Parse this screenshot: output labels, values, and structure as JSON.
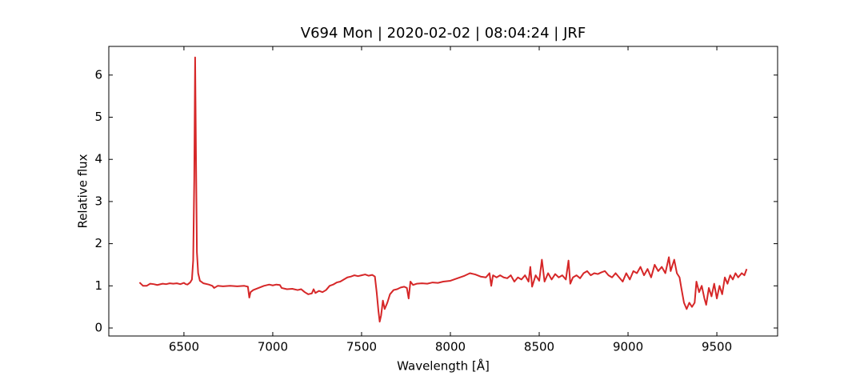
{
  "chart_data": {
    "type": "line",
    "title": "V694 Mon | 2020-02-02 | 08:04:24 | JRF",
    "x_label": "Wavelength [Å]",
    "y_label": "Relative flux",
    "x": [
      6250,
      6270,
      6290,
      6310,
      6330,
      6350,
      6380,
      6400,
      6420,
      6440,
      6460,
      6480,
      6500,
      6510,
      6520,
      6535,
      6545,
      6552,
      6558,
      6563,
      6568,
      6573,
      6580,
      6590,
      6610,
      6640,
      6660,
      6670,
      6690,
      6720,
      6760,
      6800,
      6840,
      6860,
      6868,
      6875,
      6890,
      6920,
      6950,
      6980,
      7000,
      7020,
      7040,
      7050,
      7080,
      7110,
      7140,
      7160,
      7180,
      7200,
      7220,
      7230,
      7240,
      7260,
      7280,
      7300,
      7320,
      7340,
      7360,
      7380,
      7400,
      7420,
      7440,
      7460,
      7480,
      7500,
      7520,
      7540,
      7560,
      7575,
      7585,
      7595,
      7602,
      7610,
      7620,
      7630,
      7645,
      7660,
      7680,
      7700,
      7720,
      7740,
      7755,
      7765,
      7775,
      7790,
      7810,
      7840,
      7870,
      7900,
      7930,
      7960,
      8000,
      8040,
      8080,
      8110,
      8140,
      8170,
      8200,
      8220,
      8230,
      8240,
      8260,
      8280,
      8300,
      8320,
      8340,
      8360,
      8380,
      8400,
      8420,
      8440,
      8450,
      8460,
      8480,
      8500,
      8515,
      8530,
      8550,
      8570,
      8590,
      8610,
      8630,
      8650,
      8665,
      8675,
      8690,
      8710,
      8730,
      8750,
      8770,
      8790,
      8810,
      8830,
      8850,
      8870,
      8890,
      8910,
      8930,
      8950,
      8970,
      8990,
      9010,
      9030,
      9050,
      9070,
      9090,
      9110,
      9130,
      9150,
      9170,
      9190,
      9210,
      9230,
      9240,
      9260,
      9275,
      9290,
      9300,
      9315,
      9330,
      9345,
      9360,
      9375,
      9385,
      9400,
      9415,
      9430,
      9440,
      9455,
      9470,
      9485,
      9500,
      9515,
      9530,
      9545,
      9560,
      9575,
      9590,
      9605,
      9620,
      9640,
      9655,
      9668
    ],
    "series": [
      {
        "color": "#d62728",
        "values": [
          1.08,
          1.0,
          1.0,
          1.05,
          1.04,
          1.02,
          1.05,
          1.04,
          1.06,
          1.05,
          1.06,
          1.04,
          1.07,
          1.04,
          1.03,
          1.08,
          1.15,
          1.6,
          3.5,
          6.42,
          4.0,
          1.8,
          1.3,
          1.12,
          1.06,
          1.03,
          1.0,
          0.95,
          1.0,
          0.99,
          1.0,
          0.99,
          1.0,
          0.98,
          0.72,
          0.85,
          0.9,
          0.95,
          1.0,
          1.03,
          1.01,
          1.03,
          1.02,
          0.95,
          0.92,
          0.93,
          0.9,
          0.92,
          0.85,
          0.8,
          0.82,
          0.92,
          0.83,
          0.88,
          0.85,
          0.9,
          1.0,
          1.03,
          1.08,
          1.1,
          1.15,
          1.2,
          1.22,
          1.25,
          1.23,
          1.25,
          1.27,
          1.24,
          1.26,
          1.22,
          0.85,
          0.4,
          0.15,
          0.3,
          0.65,
          0.45,
          0.6,
          0.8,
          0.9,
          0.92,
          0.96,
          0.98,
          0.95,
          0.7,
          1.1,
          1.02,
          1.05,
          1.06,
          1.05,
          1.08,
          1.07,
          1.1,
          1.12,
          1.18,
          1.24,
          1.3,
          1.27,
          1.22,
          1.2,
          1.3,
          1.0,
          1.25,
          1.2,
          1.25,
          1.2,
          1.18,
          1.25,
          1.1,
          1.2,
          1.15,
          1.25,
          1.1,
          1.45,
          0.98,
          1.25,
          1.12,
          1.62,
          1.1,
          1.3,
          1.15,
          1.28,
          1.2,
          1.25,
          1.15,
          1.6,
          1.05,
          1.2,
          1.25,
          1.18,
          1.3,
          1.35,
          1.25,
          1.3,
          1.28,
          1.32,
          1.35,
          1.25,
          1.2,
          1.3,
          1.2,
          1.1,
          1.3,
          1.15,
          1.35,
          1.3,
          1.45,
          1.25,
          1.4,
          1.2,
          1.5,
          1.35,
          1.45,
          1.3,
          1.68,
          1.35,
          1.62,
          1.3,
          1.2,
          0.95,
          0.6,
          0.45,
          0.6,
          0.5,
          0.6,
          1.1,
          0.85,
          1.0,
          0.7,
          0.55,
          0.95,
          0.75,
          1.05,
          0.7,
          1.0,
          0.8,
          1.2,
          1.05,
          1.25,
          1.15,
          1.3,
          1.2,
          1.3,
          1.25,
          1.4
        ]
      }
    ],
    "xlim": [
      6077,
      9842
    ],
    "ylim": [
      -0.19,
      6.68
    ],
    "xticks": [
      6500,
      7000,
      7500,
      8000,
      8500,
      9000,
      9500
    ],
    "yticks": [
      0,
      1,
      2,
      3,
      4,
      5,
      6
    ],
    "grid": false
  }
}
